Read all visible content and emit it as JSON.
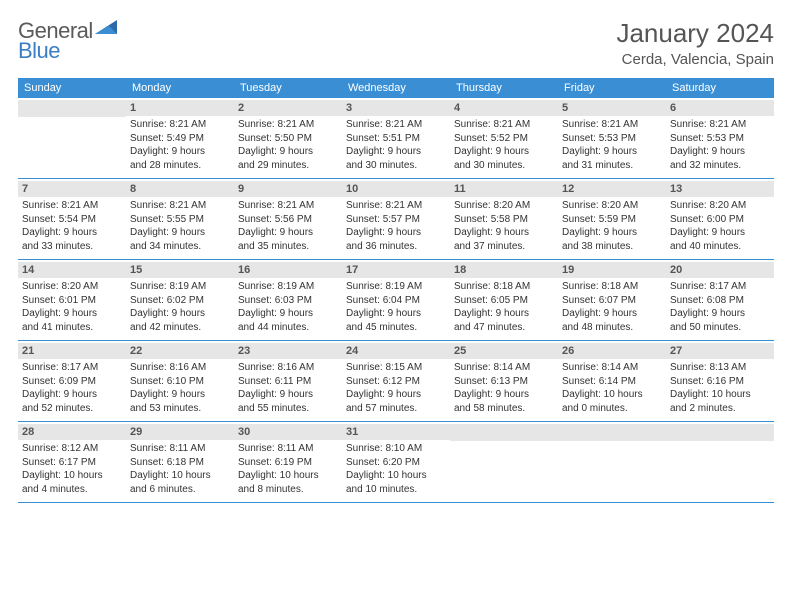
{
  "logo": {
    "general": "General",
    "blue": "Blue"
  },
  "title": "January 2024",
  "location": "Cerda, Valencia, Spain",
  "weekdays": [
    "Sunday",
    "Monday",
    "Tuesday",
    "Wednesday",
    "Thursday",
    "Friday",
    "Saturday"
  ],
  "colors": {
    "header_bg": "#3a8fd4",
    "header_text": "#ffffff",
    "daynum_bg": "#e6e6e6",
    "border": "#3a8fd4",
    "logo_blue": "#3a7fc4",
    "logo_gray": "#5a5a5a"
  },
  "weeks": [
    [
      {
        "num": "",
        "sunrise": "",
        "sunset": "",
        "daylight1": "",
        "daylight2": ""
      },
      {
        "num": "1",
        "sunrise": "Sunrise: 8:21 AM",
        "sunset": "Sunset: 5:49 PM",
        "daylight1": "Daylight: 9 hours",
        "daylight2": "and 28 minutes."
      },
      {
        "num": "2",
        "sunrise": "Sunrise: 8:21 AM",
        "sunset": "Sunset: 5:50 PM",
        "daylight1": "Daylight: 9 hours",
        "daylight2": "and 29 minutes."
      },
      {
        "num": "3",
        "sunrise": "Sunrise: 8:21 AM",
        "sunset": "Sunset: 5:51 PM",
        "daylight1": "Daylight: 9 hours",
        "daylight2": "and 30 minutes."
      },
      {
        "num": "4",
        "sunrise": "Sunrise: 8:21 AM",
        "sunset": "Sunset: 5:52 PM",
        "daylight1": "Daylight: 9 hours",
        "daylight2": "and 30 minutes."
      },
      {
        "num": "5",
        "sunrise": "Sunrise: 8:21 AM",
        "sunset": "Sunset: 5:53 PM",
        "daylight1": "Daylight: 9 hours",
        "daylight2": "and 31 minutes."
      },
      {
        "num": "6",
        "sunrise": "Sunrise: 8:21 AM",
        "sunset": "Sunset: 5:53 PM",
        "daylight1": "Daylight: 9 hours",
        "daylight2": "and 32 minutes."
      }
    ],
    [
      {
        "num": "7",
        "sunrise": "Sunrise: 8:21 AM",
        "sunset": "Sunset: 5:54 PM",
        "daylight1": "Daylight: 9 hours",
        "daylight2": "and 33 minutes."
      },
      {
        "num": "8",
        "sunrise": "Sunrise: 8:21 AM",
        "sunset": "Sunset: 5:55 PM",
        "daylight1": "Daylight: 9 hours",
        "daylight2": "and 34 minutes."
      },
      {
        "num": "9",
        "sunrise": "Sunrise: 8:21 AM",
        "sunset": "Sunset: 5:56 PM",
        "daylight1": "Daylight: 9 hours",
        "daylight2": "and 35 minutes."
      },
      {
        "num": "10",
        "sunrise": "Sunrise: 8:21 AM",
        "sunset": "Sunset: 5:57 PM",
        "daylight1": "Daylight: 9 hours",
        "daylight2": "and 36 minutes."
      },
      {
        "num": "11",
        "sunrise": "Sunrise: 8:20 AM",
        "sunset": "Sunset: 5:58 PM",
        "daylight1": "Daylight: 9 hours",
        "daylight2": "and 37 minutes."
      },
      {
        "num": "12",
        "sunrise": "Sunrise: 8:20 AM",
        "sunset": "Sunset: 5:59 PM",
        "daylight1": "Daylight: 9 hours",
        "daylight2": "and 38 minutes."
      },
      {
        "num": "13",
        "sunrise": "Sunrise: 8:20 AM",
        "sunset": "Sunset: 6:00 PM",
        "daylight1": "Daylight: 9 hours",
        "daylight2": "and 40 minutes."
      }
    ],
    [
      {
        "num": "14",
        "sunrise": "Sunrise: 8:20 AM",
        "sunset": "Sunset: 6:01 PM",
        "daylight1": "Daylight: 9 hours",
        "daylight2": "and 41 minutes."
      },
      {
        "num": "15",
        "sunrise": "Sunrise: 8:19 AM",
        "sunset": "Sunset: 6:02 PM",
        "daylight1": "Daylight: 9 hours",
        "daylight2": "and 42 minutes."
      },
      {
        "num": "16",
        "sunrise": "Sunrise: 8:19 AM",
        "sunset": "Sunset: 6:03 PM",
        "daylight1": "Daylight: 9 hours",
        "daylight2": "and 44 minutes."
      },
      {
        "num": "17",
        "sunrise": "Sunrise: 8:19 AM",
        "sunset": "Sunset: 6:04 PM",
        "daylight1": "Daylight: 9 hours",
        "daylight2": "and 45 minutes."
      },
      {
        "num": "18",
        "sunrise": "Sunrise: 8:18 AM",
        "sunset": "Sunset: 6:05 PM",
        "daylight1": "Daylight: 9 hours",
        "daylight2": "and 47 minutes."
      },
      {
        "num": "19",
        "sunrise": "Sunrise: 8:18 AM",
        "sunset": "Sunset: 6:07 PM",
        "daylight1": "Daylight: 9 hours",
        "daylight2": "and 48 minutes."
      },
      {
        "num": "20",
        "sunrise": "Sunrise: 8:17 AM",
        "sunset": "Sunset: 6:08 PM",
        "daylight1": "Daylight: 9 hours",
        "daylight2": "and 50 minutes."
      }
    ],
    [
      {
        "num": "21",
        "sunrise": "Sunrise: 8:17 AM",
        "sunset": "Sunset: 6:09 PM",
        "daylight1": "Daylight: 9 hours",
        "daylight2": "and 52 minutes."
      },
      {
        "num": "22",
        "sunrise": "Sunrise: 8:16 AM",
        "sunset": "Sunset: 6:10 PM",
        "daylight1": "Daylight: 9 hours",
        "daylight2": "and 53 minutes."
      },
      {
        "num": "23",
        "sunrise": "Sunrise: 8:16 AM",
        "sunset": "Sunset: 6:11 PM",
        "daylight1": "Daylight: 9 hours",
        "daylight2": "and 55 minutes."
      },
      {
        "num": "24",
        "sunrise": "Sunrise: 8:15 AM",
        "sunset": "Sunset: 6:12 PM",
        "daylight1": "Daylight: 9 hours",
        "daylight2": "and 57 minutes."
      },
      {
        "num": "25",
        "sunrise": "Sunrise: 8:14 AM",
        "sunset": "Sunset: 6:13 PM",
        "daylight1": "Daylight: 9 hours",
        "daylight2": "and 58 minutes."
      },
      {
        "num": "26",
        "sunrise": "Sunrise: 8:14 AM",
        "sunset": "Sunset: 6:14 PM",
        "daylight1": "Daylight: 10 hours",
        "daylight2": "and 0 minutes."
      },
      {
        "num": "27",
        "sunrise": "Sunrise: 8:13 AM",
        "sunset": "Sunset: 6:16 PM",
        "daylight1": "Daylight: 10 hours",
        "daylight2": "and 2 minutes."
      }
    ],
    [
      {
        "num": "28",
        "sunrise": "Sunrise: 8:12 AM",
        "sunset": "Sunset: 6:17 PM",
        "daylight1": "Daylight: 10 hours",
        "daylight2": "and 4 minutes."
      },
      {
        "num": "29",
        "sunrise": "Sunrise: 8:11 AM",
        "sunset": "Sunset: 6:18 PM",
        "daylight1": "Daylight: 10 hours",
        "daylight2": "and 6 minutes."
      },
      {
        "num": "30",
        "sunrise": "Sunrise: 8:11 AM",
        "sunset": "Sunset: 6:19 PM",
        "daylight1": "Daylight: 10 hours",
        "daylight2": "and 8 minutes."
      },
      {
        "num": "31",
        "sunrise": "Sunrise: 8:10 AM",
        "sunset": "Sunset: 6:20 PM",
        "daylight1": "Daylight: 10 hours",
        "daylight2": "and 10 minutes."
      },
      {
        "num": "",
        "sunrise": "",
        "sunset": "",
        "daylight1": "",
        "daylight2": ""
      },
      {
        "num": "",
        "sunrise": "",
        "sunset": "",
        "daylight1": "",
        "daylight2": ""
      },
      {
        "num": "",
        "sunrise": "",
        "sunset": "",
        "daylight1": "",
        "daylight2": ""
      }
    ]
  ]
}
